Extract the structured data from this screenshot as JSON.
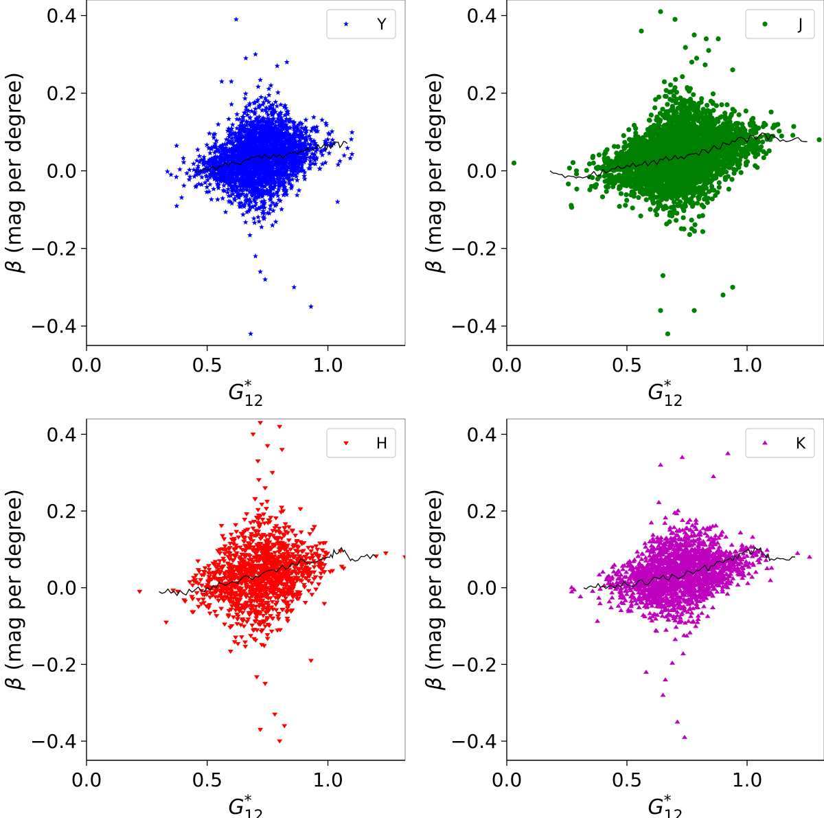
{
  "chart_data": [
    {
      "type": "scatter",
      "legend": "Y",
      "marker": "star",
      "color": "#0000ff",
      "xlabel": "G*12",
      "ylabel": "β (mag per degree)",
      "xlim": [
        0.0,
        1.32
      ],
      "ylim": [
        -0.45,
        0.44
      ],
      "xticks": [
        "0.0",
        "0.5",
        "1.0"
      ],
      "yticks": [
        "0.4",
        "0.2",
        "0.0",
        "−0.2",
        "−0.4"
      ],
      "legend_position": "top-right",
      "grid": false,
      "cloud": {
        "center_x": 0.72,
        "spread_x": 0.11,
        "slope": 0.12,
        "intercept": -0.052,
        "scatter_y": 0.045,
        "count": 2600,
        "x_range": [
          0.33,
          1.1
        ]
      },
      "outliers": [
        [
          0.62,
          0.39
        ],
        [
          0.7,
          0.3
        ],
        [
          0.66,
          0.29
        ],
        [
          0.6,
          0.23
        ],
        [
          0.56,
          0.23
        ],
        [
          0.79,
          0.27
        ],
        [
          0.83,
          0.28
        ],
        [
          0.68,
          -0.42
        ],
        [
          0.93,
          -0.35
        ],
        [
          0.86,
          -0.3
        ],
        [
          0.74,
          -0.28
        ],
        [
          0.72,
          -0.26
        ],
        [
          0.7,
          -0.22
        ],
        [
          1.04,
          -0.08
        ],
        [
          0.35,
          -0.01
        ]
      ],
      "trend": {
        "x": [
          0.45,
          0.55,
          0.65,
          0.75,
          0.85,
          0.95,
          1.02,
          1.08
        ],
        "y": [
          0.0,
          0.012,
          0.025,
          0.035,
          0.045,
          0.058,
          0.065,
          0.07
        ]
      }
    },
    {
      "type": "scatter",
      "legend": "J",
      "marker": "circle",
      "color": "#008000",
      "xlabel": "G*12",
      "ylabel": "β (mag per degree)",
      "xlim": [
        0.0,
        1.32
      ],
      "ylim": [
        -0.45,
        0.44
      ],
      "xticks": [
        "0.0",
        "0.5",
        "1.0"
      ],
      "yticks": [
        "0.4",
        "0.2",
        "0.0",
        "−0.2",
        "−0.4"
      ],
      "legend_position": "top-right",
      "grid": false,
      "cloud": {
        "center_x": 0.72,
        "spread_x": 0.14,
        "slope": 0.13,
        "intercept": -0.055,
        "scatter_y": 0.05,
        "count": 3000,
        "x_range": [
          0.2,
          1.25
        ]
      },
      "outliers": [
        [
          0.03,
          0.02
        ],
        [
          0.64,
          0.41
        ],
        [
          0.7,
          0.39
        ],
        [
          0.56,
          0.36
        ],
        [
          0.78,
          0.35
        ],
        [
          0.83,
          0.34
        ],
        [
          0.88,
          0.34
        ],
        [
          0.84,
          0.31
        ],
        [
          0.79,
          0.29
        ],
        [
          0.77,
          0.28
        ],
        [
          0.94,
          0.26
        ],
        [
          0.67,
          -0.42
        ],
        [
          0.64,
          -0.36
        ],
        [
          0.78,
          -0.36
        ],
        [
          0.9,
          -0.32
        ],
        [
          0.94,
          -0.3
        ],
        [
          0.65,
          -0.27
        ],
        [
          1.3,
          0.08
        ],
        [
          0.29,
          0.0
        ]
      ],
      "trend": {
        "x": [
          0.18,
          0.28,
          0.35,
          0.45,
          0.55,
          0.65,
          0.75,
          0.85,
          0.95,
          1.05,
          1.15,
          1.25
        ],
        "y": [
          0.0,
          -0.015,
          -0.01,
          0.005,
          0.015,
          0.028,
          0.04,
          0.055,
          0.075,
          0.09,
          0.08,
          0.075
        ]
      }
    },
    {
      "type": "scatter",
      "legend": "H",
      "marker": "triangle-down",
      "color": "#ff0000",
      "xlabel": "G*12",
      "ylabel": "β (mag per degree)",
      "xlim": [
        0.0,
        1.32
      ],
      "ylim": [
        -0.45,
        0.44
      ],
      "xticks": [
        "0.0",
        "0.5",
        "1.0"
      ],
      "yticks": [
        "0.4",
        "0.2",
        "0.0",
        "−0.2",
        "−0.4"
      ],
      "legend_position": "top-right",
      "grid": false,
      "cloud": {
        "center_x": 0.72,
        "spread_x": 0.12,
        "slope": 0.13,
        "intercept": -0.06,
        "scatter_y": 0.055,
        "count": 1300,
        "x_range": [
          0.3,
          1.2
        ]
      },
      "outliers": [
        [
          0.22,
          -0.01
        ],
        [
          0.72,
          0.43
        ],
        [
          0.8,
          0.42
        ],
        [
          0.69,
          0.4
        ],
        [
          0.75,
          0.37
        ],
        [
          0.81,
          0.36
        ],
        [
          0.71,
          0.33
        ],
        [
          0.77,
          0.3
        ],
        [
          0.74,
          0.26
        ],
        [
          0.72,
          -0.37
        ],
        [
          0.8,
          -0.4
        ],
        [
          0.78,
          -0.33
        ],
        [
          0.82,
          -0.36
        ],
        [
          0.74,
          -0.25
        ],
        [
          0.93,
          -0.19
        ],
        [
          1.24,
          0.09
        ],
        [
          1.32,
          0.08
        ],
        [
          0.33,
          -0.09
        ]
      ],
      "trend": {
        "x": [
          0.3,
          0.4,
          0.5,
          0.6,
          0.7,
          0.8,
          0.9,
          1.0,
          1.05,
          1.1,
          1.2
        ],
        "y": [
          -0.01,
          -0.015,
          0.0,
          0.015,
          0.03,
          0.05,
          0.07,
          0.08,
          0.1,
          0.075,
          0.08
        ]
      }
    },
    {
      "type": "scatter",
      "legend": "K",
      "marker": "triangle-up",
      "color": "#bf00bf",
      "xlabel": "G*12",
      "ylabel": "β (mag per degree)",
      "xlim": [
        0.0,
        1.32
      ],
      "ylim": [
        -0.45,
        0.44
      ],
      "xticks": [
        "0.0",
        "0.5",
        "1.0"
      ],
      "yticks": [
        "0.4",
        "0.2",
        "0.0",
        "−0.2",
        "−0.4"
      ],
      "legend_position": "top-right",
      "grid": false,
      "cloud": {
        "center_x": 0.72,
        "spread_x": 0.13,
        "slope": 0.12,
        "intercept": -0.05,
        "scatter_y": 0.045,
        "count": 1900,
        "x_range": [
          0.27,
          1.25
        ]
      },
      "outliers": [
        [
          0.64,
          0.32
        ],
        [
          0.73,
          0.34
        ],
        [
          0.92,
          0.35
        ],
        [
          0.86,
          0.29
        ],
        [
          0.71,
          -0.35
        ],
        [
          0.74,
          -0.39
        ],
        [
          0.65,
          -0.28
        ],
        [
          0.58,
          -0.22
        ],
        [
          0.66,
          -0.24
        ],
        [
          0.28,
          -0.005
        ],
        [
          1.21,
          0.09
        ],
        [
          1.26,
          0.08
        ]
      ],
      "trend": {
        "x": [
          0.32,
          0.4,
          0.5,
          0.6,
          0.7,
          0.8,
          0.9,
          0.98,
          1.05,
          1.1,
          1.2
        ],
        "y": [
          0.0,
          0.005,
          0.008,
          0.018,
          0.03,
          0.045,
          0.065,
          0.09,
          0.1,
          0.075,
          0.08
        ]
      }
    }
  ]
}
